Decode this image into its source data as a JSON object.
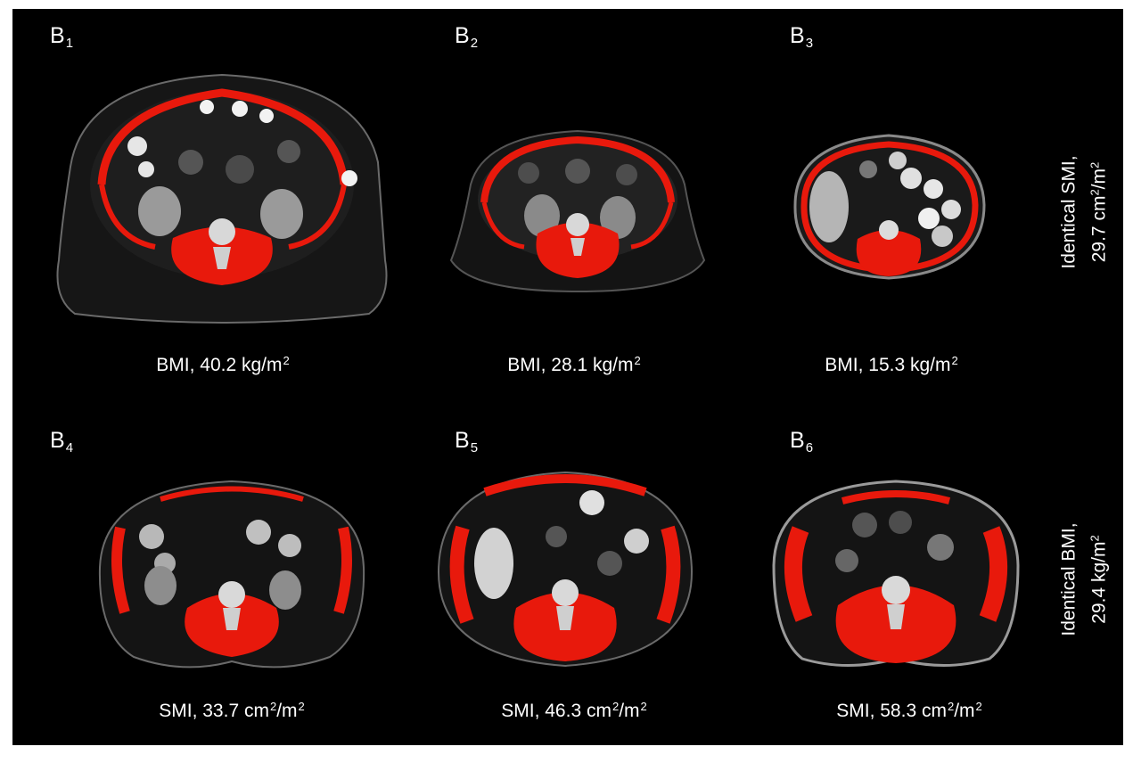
{
  "panels": [
    {
      "id": "B",
      "index": "1",
      "caption_prefix": "BMI, 40.2 kg/m",
      "caption_sup": "2",
      "caption_suffix": ""
    },
    {
      "id": "B",
      "index": "2",
      "caption_prefix": "BMI, 28.1 kg/m",
      "caption_sup": "2",
      "caption_suffix": ""
    },
    {
      "id": "B",
      "index": "3",
      "caption_prefix": "BMI, 15.3 kg/m",
      "caption_sup": "2",
      "caption_suffix": ""
    },
    {
      "id": "B",
      "index": "4",
      "caption_prefix": "SMI, 33.7 cm",
      "caption_sup": "2",
      "caption_suffix": "/m",
      "caption_sup2": "2"
    },
    {
      "id": "B",
      "index": "5",
      "caption_prefix": "SMI, 46.3 cm",
      "caption_sup": "2",
      "caption_suffix": "/m",
      "caption_sup2": "2"
    },
    {
      "id": "B",
      "index": "6",
      "caption_prefix": "SMI, 58.3 cm",
      "caption_sup": "2",
      "caption_suffix": "/m",
      "caption_sup2": "2"
    }
  ],
  "side_labels": {
    "top_line1": "Identical SMI,",
    "top_line2_prefix": "29.7 cm",
    "top_line2_sup": "2",
    "top_line2_mid": "/m",
    "top_line2_sup2": "2",
    "bottom_line1": "Identical BMI,",
    "bottom_line2_prefix": "29.4 kg/m",
    "bottom_line2_sup": "2"
  },
  "colors": {
    "background": "#000000",
    "muscle_highlight": "#e8190c",
    "text": "#ffffff"
  }
}
